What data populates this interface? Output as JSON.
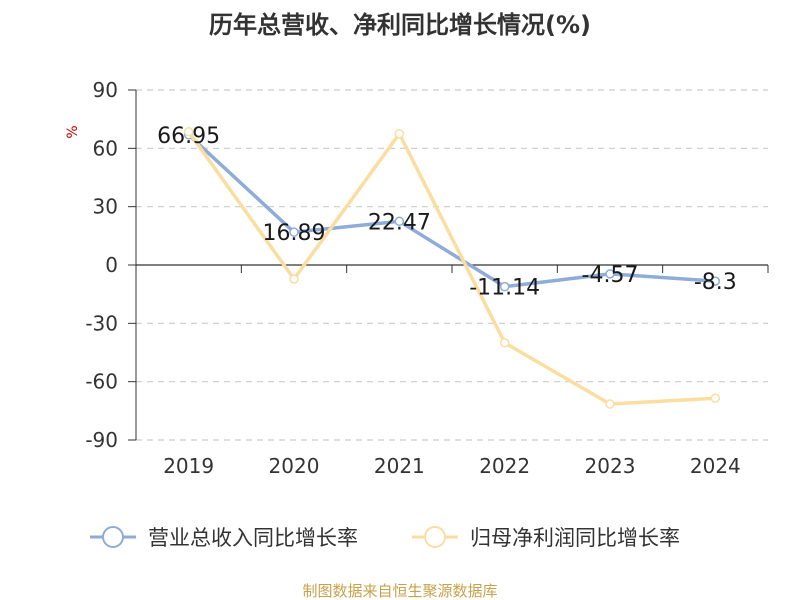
{
  "chart_data": {
    "type": "line",
    "title": "历年总营收、净利同比增长情况(%)",
    "ylabel": "%",
    "categories": [
      "2019",
      "2020",
      "2021",
      "2022",
      "2023",
      "2024"
    ],
    "ylim": [
      -90,
      90
    ],
    "yticks": [
      90,
      60,
      30,
      0,
      -30,
      -60,
      -90
    ],
    "grid": true,
    "legend_position": "bottom",
    "series": [
      {
        "name": "营业总收入同比增长率",
        "values": [
          66.95,
          16.89,
          22.47,
          -11.14,
          -4.57,
          -8.3
        ],
        "labels": [
          "66.95",
          "16.89",
          "22.47",
          "-11.14",
          "-4.57",
          "-8.3"
        ],
        "color": "#8eabda"
      },
      {
        "name": "归母净利润同比增长率",
        "values": [
          68.5,
          -7.2,
          67.5,
          -40.0,
          -71.5,
          -68.5
        ],
        "color": "#fcdda0"
      }
    ]
  },
  "footer": {
    "source": "制图数据来自恒生聚源数据库"
  },
  "colors": {
    "title": "#333333",
    "axis": "#333333",
    "grid": "#cccccc",
    "unit": "#cc0000",
    "source": "#c8a24a"
  }
}
